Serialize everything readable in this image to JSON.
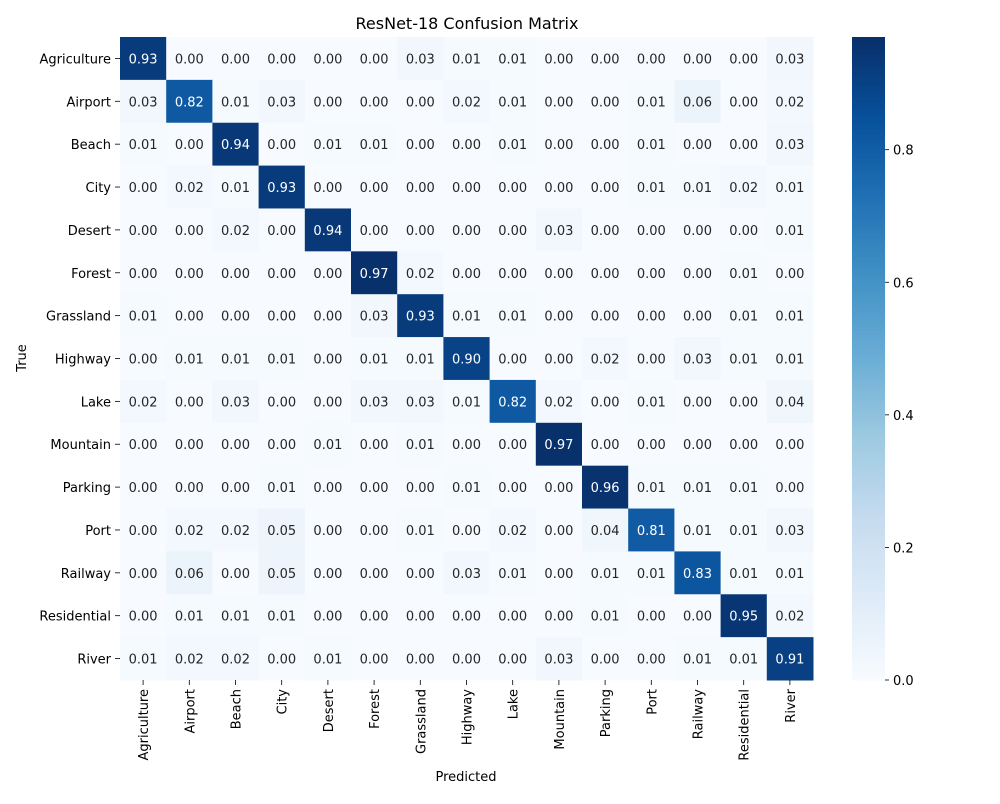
{
  "chart_data": {
    "type": "heatmap",
    "title": "ResNet-18 Confusion Matrix",
    "xlabel": "Predicted",
    "ylabel": "True",
    "categories": [
      "Agriculture",
      "Airport",
      "Beach",
      "City",
      "Desert",
      "Forest",
      "Grassland",
      "Highway",
      "Lake",
      "Mountain",
      "Parking",
      "Port",
      "Railway",
      "Residential",
      "River"
    ],
    "values": [
      [
        0.93,
        0.0,
        0.0,
        0.0,
        0.0,
        0.0,
        0.03,
        0.01,
        0.01,
        0.0,
        0.0,
        0.0,
        0.0,
        0.0,
        0.03
      ],
      [
        0.03,
        0.82,
        0.01,
        0.03,
        0.0,
        0.0,
        0.0,
        0.02,
        0.01,
        0.0,
        0.0,
        0.01,
        0.06,
        0.0,
        0.02
      ],
      [
        0.01,
        0.0,
        0.94,
        0.0,
        0.01,
        0.01,
        0.0,
        0.0,
        0.01,
        0.0,
        0.0,
        0.01,
        0.0,
        0.0,
        0.03
      ],
      [
        0.0,
        0.02,
        0.01,
        0.93,
        0.0,
        0.0,
        0.0,
        0.0,
        0.0,
        0.0,
        0.0,
        0.01,
        0.01,
        0.02,
        0.01
      ],
      [
        0.0,
        0.0,
        0.02,
        0.0,
        0.94,
        0.0,
        0.0,
        0.0,
        0.0,
        0.03,
        0.0,
        0.0,
        0.0,
        0.0,
        0.01
      ],
      [
        0.0,
        0.0,
        0.0,
        0.0,
        0.0,
        0.97,
        0.02,
        0.0,
        0.0,
        0.0,
        0.0,
        0.0,
        0.0,
        0.01,
        0.0
      ],
      [
        0.01,
        0.0,
        0.0,
        0.0,
        0.0,
        0.03,
        0.93,
        0.01,
        0.01,
        0.0,
        0.0,
        0.0,
        0.0,
        0.01,
        0.01
      ],
      [
        0.0,
        0.01,
        0.01,
        0.01,
        0.0,
        0.01,
        0.01,
        0.9,
        0.0,
        0.0,
        0.02,
        0.0,
        0.03,
        0.01,
        0.01
      ],
      [
        0.02,
        0.0,
        0.03,
        0.0,
        0.0,
        0.03,
        0.03,
        0.01,
        0.82,
        0.02,
        0.0,
        0.01,
        0.0,
        0.0,
        0.04
      ],
      [
        0.0,
        0.0,
        0.0,
        0.0,
        0.01,
        0.0,
        0.01,
        0.0,
        0.0,
        0.97,
        0.0,
        0.0,
        0.0,
        0.0,
        0.0
      ],
      [
        0.0,
        0.0,
        0.0,
        0.01,
        0.0,
        0.0,
        0.0,
        0.01,
        0.0,
        0.0,
        0.96,
        0.01,
        0.01,
        0.01,
        0.0
      ],
      [
        0.0,
        0.02,
        0.02,
        0.05,
        0.0,
        0.0,
        0.01,
        0.0,
        0.02,
        0.0,
        0.04,
        0.81,
        0.01,
        0.01,
        0.03
      ],
      [
        0.0,
        0.06,
        0.0,
        0.05,
        0.0,
        0.0,
        0.0,
        0.03,
        0.01,
        0.0,
        0.01,
        0.01,
        0.83,
        0.01,
        0.01
      ],
      [
        0.0,
        0.01,
        0.01,
        0.01,
        0.0,
        0.0,
        0.0,
        0.0,
        0.0,
        0.0,
        0.01,
        0.0,
        0.0,
        0.95,
        0.02
      ],
      [
        0.01,
        0.02,
        0.02,
        0.0,
        0.01,
        0.0,
        0.0,
        0.0,
        0.0,
        0.03,
        0.0,
        0.0,
        0.01,
        0.01,
        0.91
      ]
    ],
    "value_range": [
      0.0,
      0.97
    ],
    "colormap": "Blues",
    "colorbar_ticks": [
      0.0,
      0.2,
      0.4,
      0.6,
      0.8
    ],
    "colorbar_tick_labels": [
      "0.0",
      "0.2",
      "0.4",
      "0.6",
      "0.8"
    ]
  }
}
